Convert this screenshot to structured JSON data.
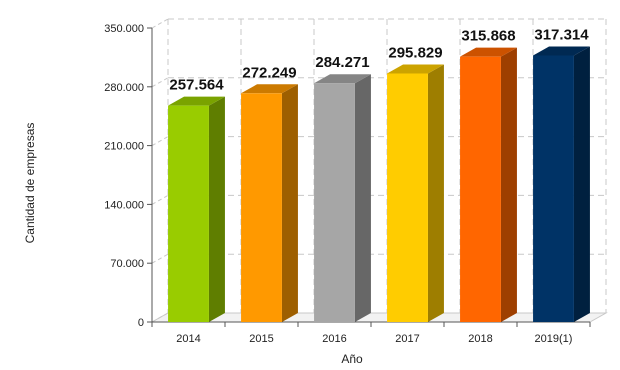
{
  "chart_data": {
    "type": "bar",
    "title": "",
    "xlabel": "Año",
    "ylabel": "Cantidad de empresas",
    "categories": [
      "2014",
      "2015",
      "2016",
      "2017",
      "2018",
      "2019(1)"
    ],
    "values": [
      257564,
      272249,
      284271,
      295829,
      315868,
      317314
    ],
    "value_labels": [
      "257.564",
      "272.249",
      "284.271",
      "295.829",
      "315.868",
      "317.314"
    ],
    "ylim": [
      0,
      350000
    ],
    "yticks": [
      0,
      70000,
      140000,
      210000,
      280000,
      350000
    ],
    "ytick_labels": [
      "0",
      "70.000",
      "140.000",
      "210.000",
      "280.000",
      "350.000"
    ],
    "grid": true,
    "colors": [
      "#99cc00",
      "#ff9900",
      "#a6a6a6",
      "#ffcc00",
      "#ff6600",
      "#003366"
    ]
  }
}
